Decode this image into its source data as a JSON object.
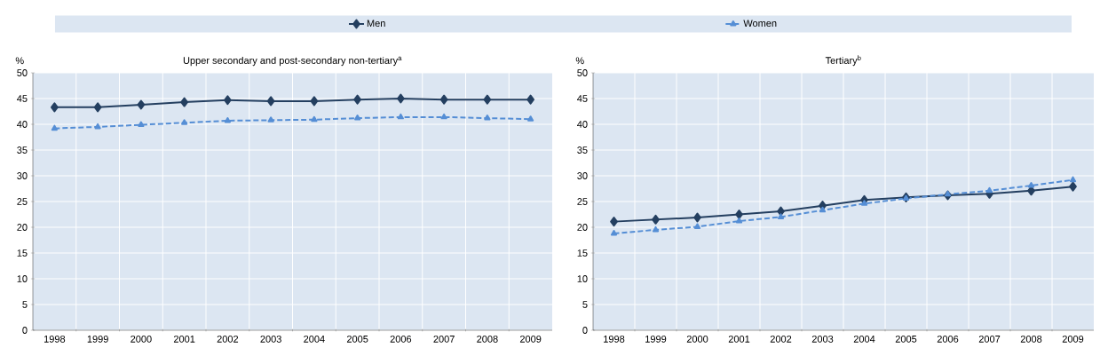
{
  "chart_data": [
    {
      "type": "line",
      "title": "Upper secondary and  post-secondary non-tertiary$^{a}$",
      "ylabel": "%",
      "categories": [
        "1998",
        "1999",
        "2000",
        "2001",
        "2002",
        "2003",
        "2004",
        "2005",
        "2006",
        "2007",
        "2008",
        "2009"
      ],
      "ylim": [
        0,
        50
      ],
      "yticks": [
        0,
        5,
        10,
        15,
        20,
        25,
        30,
        35,
        40,
        45,
        50
      ],
      "grid": true,
      "legend": "top",
      "series": [
        {
          "name": "Men",
          "color": "#243f60",
          "marker": "diamond",
          "line_style": "solid",
          "values": [
            43.3,
            43.3,
            43.8,
            44.3,
            44.7,
            44.5,
            44.5,
            44.8,
            45.0,
            44.8,
            44.8,
            44.8
          ]
        },
        {
          "name": "Women",
          "color": "#558ed5",
          "marker": "triangle",
          "line_style": "dashed",
          "values": [
            39.2,
            39.5,
            39.9,
            40.3,
            40.7,
            40.8,
            40.9,
            41.2,
            41.4,
            41.4,
            41.2,
            41.0
          ]
        }
      ]
    },
    {
      "type": "line",
      "title": "Tertiary$^{b}$",
      "ylabel": "%",
      "categories": [
        "1998",
        "1999",
        "2000",
        "2001",
        "2002",
        "2003",
        "2004",
        "2005",
        "2006",
        "2007",
        "2008",
        "2009"
      ],
      "ylim": [
        0,
        50
      ],
      "yticks": [
        0,
        5,
        10,
        15,
        20,
        25,
        30,
        35,
        40,
        45,
        50
      ],
      "grid": true,
      "series": [
        {
          "color": "#243f60",
          "marker": "diamond",
          "line_style": "solid",
          "values": [
            21.1,
            21.5,
            21.9,
            22.5,
            23.1,
            24.2,
            25.3,
            25.8,
            26.2,
            26.5,
            27.1,
            27.9
          ]
        },
        {
          "color": "#558ed5",
          "marker": "triangle",
          "line_style": "dashed",
          "values": [
            18.8,
            19.5,
            20.1,
            21.2,
            22.0,
            23.3,
            24.6,
            25.6,
            26.4,
            27.1,
            28.1,
            29.2
          ]
        }
      ]
    }
  ]
}
